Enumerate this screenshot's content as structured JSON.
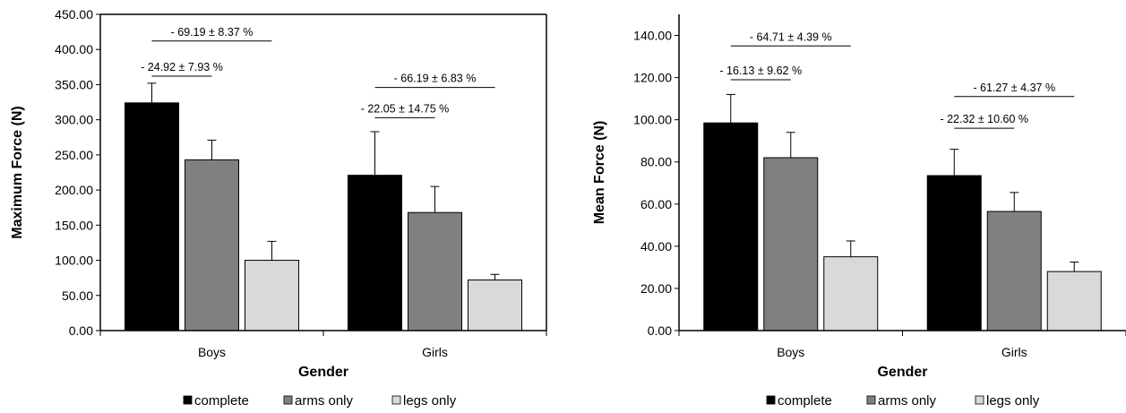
{
  "colors": {
    "complete": "#000000",
    "arms_only": "#808080",
    "legs_only": "#d9d9d9",
    "axis": "#000000"
  },
  "chart_data": [
    {
      "type": "bar",
      "title": "",
      "xlabel": "Gender",
      "ylabel": "Maximum Force (N)",
      "ylim": [
        0,
        450
      ],
      "yticks": [
        "0.00",
        "50.00",
        "100.00",
        "150.00",
        "200.00",
        "250.00",
        "300.00",
        "350.00",
        "400.00",
        "450.00"
      ],
      "categories": [
        "Boys",
        "Girls"
      ],
      "grid": false,
      "legend_position": "bottom",
      "series": [
        {
          "name": "complete",
          "color_key": "complete",
          "values": [
            324,
            221
          ],
          "errors": [
            28,
            62
          ]
        },
        {
          "name": "arms only",
          "color_key": "arms_only",
          "values": [
            243,
            168
          ],
          "errors": [
            28,
            37
          ]
        },
        {
          "name": "legs only",
          "color_key": "legs_only",
          "values": [
            100,
            72
          ],
          "errors": [
            27,
            8
          ]
        }
      ],
      "annotations": [
        {
          "text": "- 69.19 ±  8.37 %",
          "category": 0,
          "from_series": 0,
          "to_series": 2,
          "y": 412
        },
        {
          "text": "- 24.92 ± 7.93 %",
          "category": 0,
          "from_series": 0,
          "to_series": 1,
          "y": 362
        },
        {
          "text": "- 66.19 ± 6.83 %",
          "category": 1,
          "from_series": 0,
          "to_series": 2,
          "y": 346
        },
        {
          "text": "- 22.05 ± 14.75 %",
          "category": 1,
          "from_series": 0,
          "to_series": 1,
          "y": 303
        }
      ]
    },
    {
      "type": "bar",
      "title": "",
      "xlabel": "Gender",
      "ylabel": "Mean Force (N)",
      "ylim": [
        0,
        150
      ],
      "yticks": [
        "0.00",
        "20.00",
        "40.00",
        "60.00",
        "80.00",
        "100.00",
        "120.00",
        "140.00"
      ],
      "categories": [
        "Boys",
        "Girls"
      ],
      "grid": false,
      "legend_position": "bottom",
      "series": [
        {
          "name": "complete",
          "color_key": "complete",
          "values": [
            98.5,
            73.5
          ],
          "errors": [
            13.5,
            12.5
          ]
        },
        {
          "name": "arms only",
          "color_key": "arms_only",
          "values": [
            82,
            56.5
          ],
          "errors": [
            12,
            9
          ]
        },
        {
          "name": "legs only",
          "color_key": "legs_only",
          "values": [
            35,
            28
          ],
          "errors": [
            7.5,
            4.5
          ]
        }
      ],
      "annotations": [
        {
          "text": "- 64.71 ±  4.39 %",
          "category": 0,
          "from_series": 0,
          "to_series": 2,
          "y": 135
        },
        {
          "text": "- 16.13 ± 9.62 %",
          "category": 0,
          "from_series": 0,
          "to_series": 1,
          "y": 119
        },
        {
          "text": "- 61.27 ± 4.37 %",
          "category": 1,
          "from_series": 0,
          "to_series": 2,
          "y": 111
        },
        {
          "text": "- 22.32 ± 10.60 %",
          "category": 1,
          "from_series": 0,
          "to_series": 1,
          "y": 96
        }
      ]
    }
  ]
}
